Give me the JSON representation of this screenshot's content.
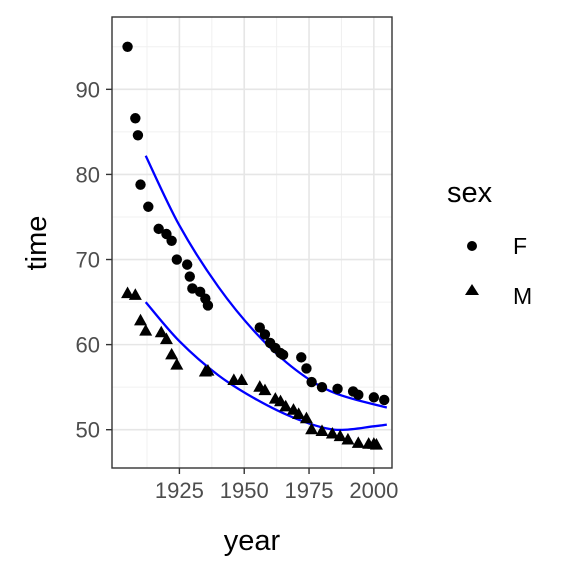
{
  "chart_data": {
    "type": "scatter",
    "xlabel": "year",
    "ylabel": "time",
    "xlim": [
      1899,
      2007
    ],
    "ylim": [
      45.5,
      98.5
    ],
    "x_ticks": [
      1925,
      1950,
      1975,
      2000
    ],
    "x_tick_labels": [
      "1925",
      "1950",
      "1975",
      "2000"
    ],
    "y_ticks": [
      50,
      60,
      70,
      80,
      90
    ],
    "y_tick_labels": [
      "50",
      "60",
      "70",
      "80",
      "90"
    ],
    "grid": true,
    "legend": {
      "title": "sex",
      "position": "right",
      "entries": [
        {
          "label": "F",
          "shape": "circle"
        },
        {
          "label": "M",
          "shape": "triangle"
        }
      ]
    },
    "series": [
      {
        "name": "F",
        "shape": "circle",
        "color": "#000000",
        "points": [
          [
            1905,
            95.0
          ],
          [
            1908,
            86.6
          ],
          [
            1909,
            84.6
          ],
          [
            1910,
            78.8
          ],
          [
            1913,
            76.2
          ],
          [
            1917,
            73.6
          ],
          [
            1920,
            73.0
          ],
          [
            1922,
            72.2
          ],
          [
            1924,
            70.0
          ],
          [
            1928,
            69.4
          ],
          [
            1929,
            68.0
          ],
          [
            1930,
            66.6
          ],
          [
            1933,
            66.2
          ],
          [
            1935,
            65.4
          ],
          [
            1936,
            64.6
          ],
          [
            1956,
            62.0
          ],
          [
            1958,
            61.2
          ],
          [
            1960,
            60.2
          ],
          [
            1962,
            59.6
          ],
          [
            1964,
            59.0
          ],
          [
            1965,
            58.8
          ],
          [
            1972,
            58.5
          ],
          [
            1974,
            57.2
          ],
          [
            1976,
            55.6
          ],
          [
            1980,
            55.0
          ],
          [
            1986,
            54.8
          ],
          [
            1992,
            54.5
          ],
          [
            1994,
            54.1
          ],
          [
            2000,
            53.8
          ],
          [
            2004,
            53.5
          ]
        ]
      },
      {
        "name": "M",
        "shape": "triangle",
        "color": "#000000",
        "points": [
          [
            1905,
            66.0
          ],
          [
            1908,
            65.8
          ],
          [
            1910,
            62.8
          ],
          [
            1912,
            61.6
          ],
          [
            1918,
            61.4
          ],
          [
            1920,
            60.6
          ],
          [
            1922,
            58.8
          ],
          [
            1924,
            57.6
          ],
          [
            1935,
            56.8
          ],
          [
            1936,
            56.9
          ],
          [
            1946,
            55.8
          ],
          [
            1949,
            55.8
          ],
          [
            1956,
            55.0
          ],
          [
            1958,
            54.6
          ],
          [
            1962,
            53.6
          ],
          [
            1964,
            53.3
          ],
          [
            1966,
            52.7
          ],
          [
            1969,
            52.3
          ],
          [
            1971,
            51.8
          ],
          [
            1974,
            51.3
          ],
          [
            1976,
            50.0
          ],
          [
            1980,
            49.8
          ],
          [
            1984,
            49.5
          ],
          [
            1987,
            49.2
          ],
          [
            1990,
            48.8
          ],
          [
            1994,
            48.4
          ],
          [
            1998,
            48.3
          ],
          [
            2000,
            48.3
          ],
          [
            2001,
            48.2
          ]
        ]
      }
    ],
    "trend_lines": [
      {
        "color": "#0000ff",
        "points": [
          [
            1912,
            82.2
          ],
          [
            1925,
            74.0
          ],
          [
            1940,
            66.8
          ],
          [
            1955,
            61.2
          ],
          [
            1970,
            57.0
          ],
          [
            1985,
            54.3
          ],
          [
            2005,
            52.6
          ]
        ]
      },
      {
        "color": "#0000ff",
        "points": [
          [
            1912,
            65.0
          ],
          [
            1925,
            60.4
          ],
          [
            1940,
            56.4
          ],
          [
            1955,
            53.5
          ],
          [
            1970,
            51.3
          ],
          [
            1985,
            50.0
          ],
          [
            2000,
            50.4
          ],
          [
            2005,
            50.6
          ]
        ]
      }
    ]
  }
}
